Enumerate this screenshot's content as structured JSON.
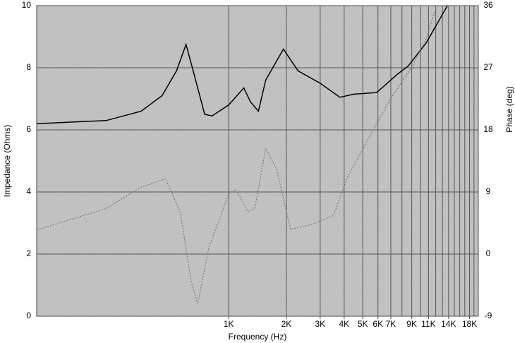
{
  "chart_data": {
    "type": "line",
    "xlabel": "Frequency (Hz)",
    "ylabel": "Impedance (Ohms)",
    "y2label": "Phase (deg)",
    "xscale": "log",
    "xlim": [
      100,
      20000
    ],
    "ylim": [
      0,
      10
    ],
    "y2lim": [
      -9,
      36
    ],
    "xticks": [
      {
        "value": 1000,
        "label": "1K"
      },
      {
        "value": 2000,
        "label": "2K"
      },
      {
        "value": 3000,
        "label": "3K"
      },
      {
        "value": 4000,
        "label": "4K"
      },
      {
        "value": 5000,
        "label": "5K"
      },
      {
        "value": 6000,
        "label": "6K"
      },
      {
        "value": 7000,
        "label": "7K"
      },
      {
        "value": 9000,
        "label": "9K"
      },
      {
        "value": 11000,
        "label": "11K"
      },
      {
        "value": 14000,
        "label": "14K"
      },
      {
        "value": 18000,
        "label": "18K"
      }
    ],
    "xgrid": [
      1000,
      2000,
      3000,
      4000,
      5000,
      6000,
      7000,
      8000,
      9000,
      10000,
      11000,
      12000,
      13000,
      14000,
      15000,
      16000,
      17000,
      18000,
      19000,
      20000
    ],
    "yticks": [
      0,
      2,
      4,
      6,
      8,
      10
    ],
    "y2ticks": [
      -9,
      0,
      9,
      18,
      27,
      36
    ],
    "grid": true,
    "series": [
      {
        "name": "Impedance",
        "color": "#000000",
        "dash": false,
        "axis": "y",
        "x": [
          100,
          230,
          350,
          450,
          535,
          600,
          660,
          750,
          820,
          1000,
          1200,
          1300,
          1430,
          1560,
          1930,
          2300,
          3000,
          3800,
          4500,
          5900,
          7600,
          8600,
          10700,
          13800
        ],
        "values": [
          6.2,
          6.3,
          6.6,
          7.1,
          7.9,
          8.75,
          7.8,
          6.5,
          6.45,
          6.8,
          7.35,
          6.9,
          6.6,
          7.6,
          8.6,
          7.9,
          7.5,
          7.05,
          7.15,
          7.2,
          7.8,
          8.05,
          8.8,
          10.0
        ]
      },
      {
        "name": "Phase",
        "color": "#707070",
        "dash": true,
        "axis": "y2",
        "x": [
          100,
          230,
          350,
          470,
          560,
          640,
          690,
          790,
          1000,
          1090,
          1260,
          1370,
          1560,
          1780,
          2100,
          2720,
          3520,
          4170,
          5390,
          6970,
          9000,
          10700,
          11900
        ],
        "values": [
          3.5,
          6.6,
          9.7,
          10.9,
          6.1,
          -4.1,
          -7.2,
          1.0,
          8.7,
          9.4,
          6.1,
          6.6,
          15.3,
          12.3,
          3.6,
          4.3,
          5.6,
          11.2,
          16.9,
          22.5,
          27.1,
          31.2,
          35.3
        ]
      }
    ]
  }
}
